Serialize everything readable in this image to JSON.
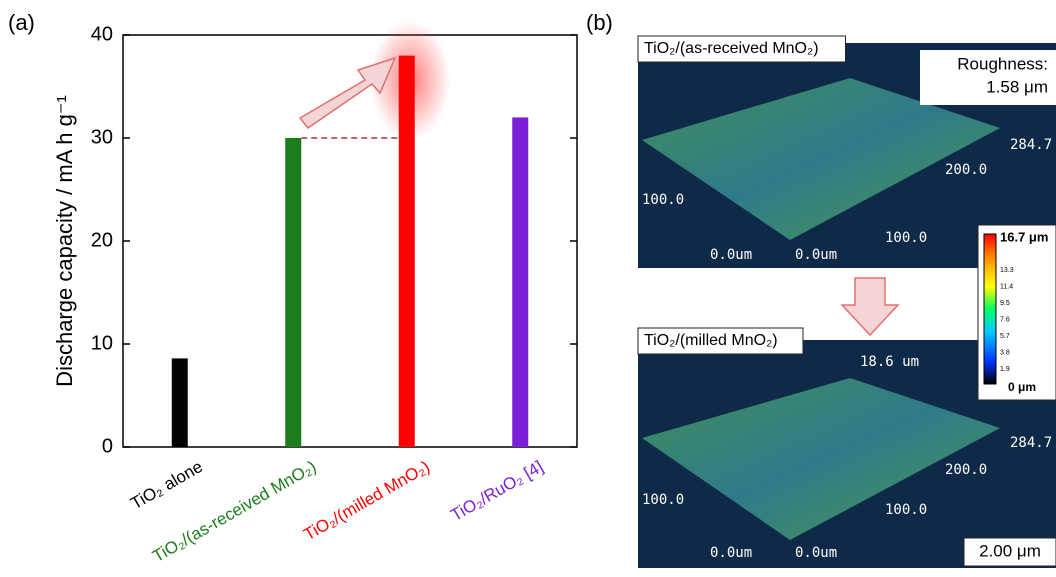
{
  "panel_labels": [
    "(a)",
    "(b)"
  ],
  "chart_data": {
    "type": "bar",
    "ylabel": "Discharge capacity / mA h g⁻¹",
    "categories": [
      "TiO₂ alone",
      "TiO₂/(as-received MnO₂)",
      "TiO₂/(milled MnO₂)",
      "TiO₂/RuO₂ [4]"
    ],
    "values": [
      8.6,
      30,
      38,
      32
    ],
    "colors": [
      "#000000",
      "#1b7d1b",
      "#ff0000",
      "#7b1fd8"
    ],
    "ylim": [
      0,
      40
    ],
    "yticks": [
      0,
      10,
      20,
      30,
      40
    ]
  },
  "images": [
    {
      "title": "TiO₂/(as-received MnO₂)",
      "axis_labels": [
        "284.7",
        "200.0",
        "100.0",
        "100.0",
        "0.0um",
        "0.0um"
      ],
      "note": [
        "Roughness:",
        "1.58 μm"
      ]
    },
    {
      "title": "TiO₂/(milled MnO₂)",
      "axis_labels": [
        "18.6 um",
        "284.7",
        "200.0",
        "100.0",
        "100.0",
        "0.0um",
        "0.0um"
      ],
      "note": [
        "2.00 μm"
      ]
    }
  ],
  "colorbar": {
    "max": "16.7 μm",
    "ticks": [
      "13.3",
      "11.4",
      "9.5",
      "7.6",
      "5.7",
      "3.8",
      "1.9"
    ],
    "min": "0 μm"
  }
}
